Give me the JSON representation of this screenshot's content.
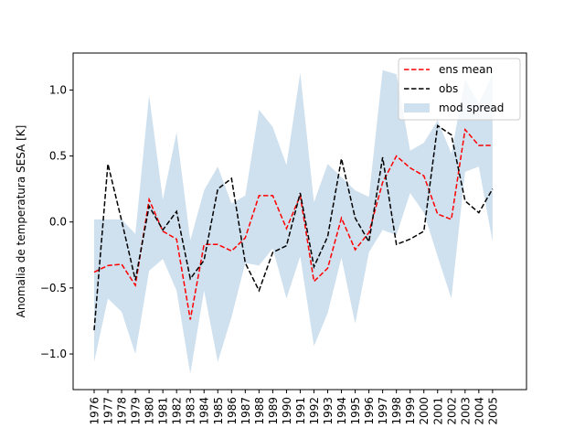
{
  "chart_data": {
    "type": "line",
    "title": "",
    "ylabel": "Anomalia de temperatura SESA [K]",
    "xlabel": "",
    "ylim": [
      -1.27,
      1.28
    ],
    "yticks": [
      -1.0,
      -0.5,
      0.0,
      0.5,
      1.0
    ],
    "ytick_labels": [
      "−1.0",
      "−0.5",
      "0.0",
      "0.5",
      "1.0"
    ],
    "grid": false,
    "legend_position": "upper right",
    "x": [
      "1976",
      "1977",
      "1978",
      "1979",
      "1980",
      "1981",
      "1982",
      "1983",
      "1984",
      "1985",
      "1986",
      "1987",
      "1988",
      "1989",
      "1990",
      "1991",
      "1992",
      "1993",
      "1994",
      "1995",
      "1996",
      "1997",
      "1998",
      "1999",
      "2000",
      "2001",
      "2002",
      "2003",
      "2004",
      "2005"
    ],
    "series": [
      {
        "name": "ens mean",
        "style": "dashed",
        "color": "#ff0000",
        "values": [
          -0.38,
          -0.33,
          -0.32,
          -0.48,
          0.17,
          -0.07,
          -0.13,
          -0.74,
          -0.17,
          -0.17,
          -0.22,
          -0.12,
          0.2,
          0.2,
          -0.05,
          0.2,
          -0.45,
          -0.35,
          0.03,
          -0.21,
          -0.08,
          0.3,
          0.5,
          0.41,
          0.35,
          0.06,
          0.02,
          0.7,
          0.58,
          0.58
        ]
      },
      {
        "name": "obs",
        "style": "dashed",
        "color": "#000000",
        "values": [
          -0.82,
          0.44,
          0.01,
          -0.44,
          0.12,
          -0.06,
          0.08,
          -0.43,
          -0.29,
          0.25,
          0.33,
          -0.31,
          -0.52,
          -0.23,
          -0.18,
          0.22,
          -0.34,
          -0.11,
          0.48,
          0.03,
          -0.15,
          0.49,
          -0.17,
          -0.13,
          -0.07,
          0.73,
          0.66,
          0.16,
          0.07,
          0.25
        ]
      },
      {
        "name": "mod spread",
        "type": "band",
        "color": "#cfe0ee",
        "lower": [
          -1.06,
          -0.58,
          -0.68,
          -1.0,
          -0.37,
          -0.28,
          -0.52,
          -1.15,
          -0.52,
          -1.06,
          -0.72,
          -0.31,
          -0.33,
          -0.2,
          -0.58,
          -0.26,
          -0.94,
          -0.69,
          -0.27,
          -0.77,
          -0.23,
          -0.06,
          -0.1,
          0.22,
          0.07,
          -0.26,
          -0.58,
          0.38,
          0.42,
          -0.15
        ],
        "upper": [
          0.02,
          0.02,
          0.02,
          -0.09,
          0.96,
          0.17,
          0.68,
          -0.14,
          0.24,
          0.42,
          0.14,
          0.2,
          0.85,
          0.72,
          0.43,
          1.13,
          0.15,
          0.44,
          0.34,
          0.24,
          0.19,
          1.15,
          1.12,
          0.54,
          0.6,
          0.77,
          0.52,
          1.08,
          0.9,
          1.12
        ]
      }
    ]
  }
}
